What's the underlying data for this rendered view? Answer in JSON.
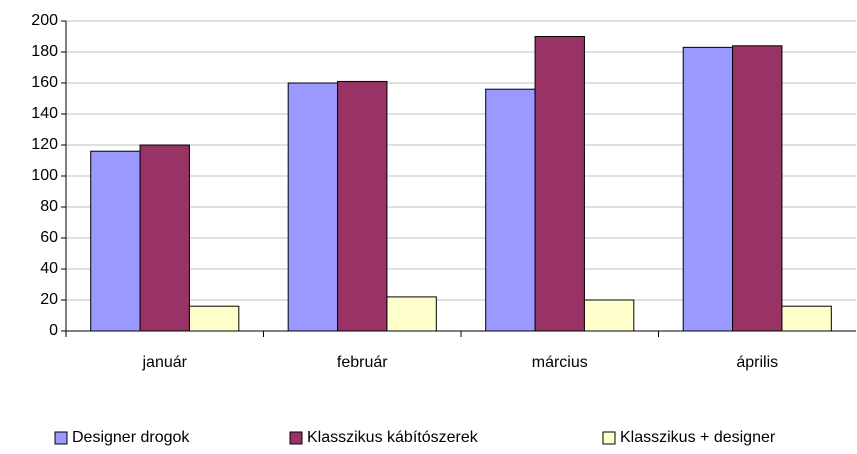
{
  "chart_data": {
    "type": "bar",
    "categories": [
      "január",
      "február",
      "március",
      "április"
    ],
    "series": [
      {
        "name": "Designer drogok",
        "color": "#9999ff",
        "values": [
          116,
          160,
          156,
          183
        ]
      },
      {
        "name": "Klasszikus kábítószerek",
        "color": "#993366",
        "values": [
          120,
          161,
          190,
          184
        ]
      },
      {
        "name": "Klasszikus + designer",
        "color": "#ffffcc",
        "values": [
          16,
          22,
          20,
          16
        ]
      }
    ],
    "ylim": [
      0,
      200
    ],
    "yticks": [
      0,
      20,
      40,
      60,
      80,
      100,
      120,
      140,
      160,
      180,
      200
    ],
    "grid": true,
    "legend": "bottom"
  }
}
